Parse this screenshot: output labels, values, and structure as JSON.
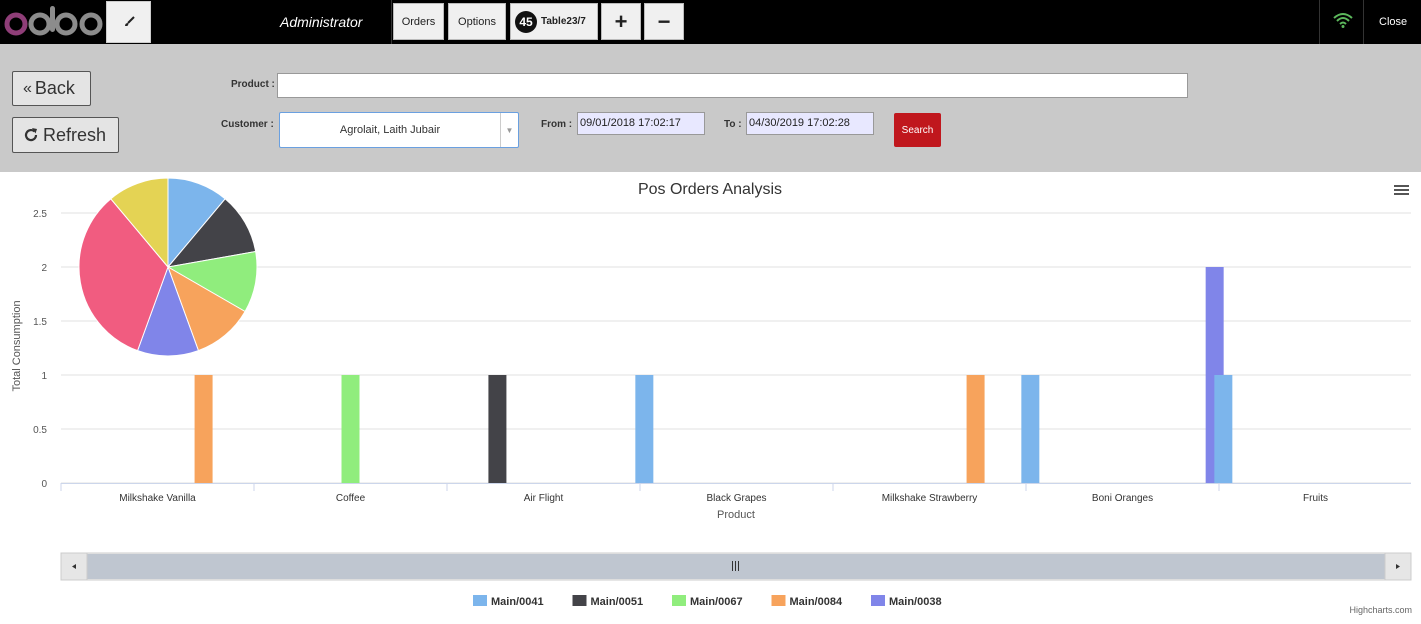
{
  "topbar": {
    "logo_text": "odoo",
    "user_name": "Administrator",
    "orders_label": "Orders",
    "options_label": "Options",
    "order_number": "45",
    "order_name": "Table23/7",
    "plus_label": "+",
    "minus_label": "−",
    "close_label": "Close"
  },
  "filters": {
    "back_label": "Back",
    "refresh_label": "Refresh",
    "product_label": "Product :",
    "product_value": "",
    "customer_label": "Customer :",
    "customer_value": "Agrolait, Laith Jubair",
    "from_label": "From :",
    "from_value": "09/01/2018 17:02:17",
    "to_label": "To :",
    "to_value": "04/30/2019 17:02:28",
    "search_label": "Search"
  },
  "colors": {
    "Main/0041": "#7cb5ec",
    "Main/0051": "#434348",
    "Main/0067": "#90ed7d",
    "Main/0084": "#f7a35c",
    "Main/0038": "#8085e9",
    "pie_red": "#f15c80",
    "pie_yellow": "#e4d354",
    "accent_red": "#c0171d"
  },
  "credit": "Highcharts.com",
  "chart_data": {
    "type": "bar",
    "title": "Pos Orders Analysis",
    "xlabel": "Product",
    "ylabel": "Total Consumption",
    "ylim": [
      0,
      2.5
    ],
    "yticks": [
      "0",
      "0.5",
      "1",
      "1.5",
      "2",
      "2.5"
    ],
    "grid": true,
    "legend_position": "bottom",
    "categories": [
      "Milkshake Vanilla",
      "Coffee",
      "Air Flight",
      "Black Grapes",
      "Milkshake Strawberry",
      "Boni Oranges",
      "Fruits"
    ],
    "series": [
      {
        "name": "Main/0041",
        "values": [
          0,
          0,
          0,
          1,
          0,
          1,
          1
        ]
      },
      {
        "name": "Main/0051",
        "values": [
          0,
          0,
          1,
          0,
          0,
          0,
          0
        ]
      },
      {
        "name": "Main/0067",
        "values": [
          0,
          1,
          0,
          0,
          0,
          0,
          0
        ]
      },
      {
        "name": "Main/0084",
        "values": [
          1,
          0,
          0,
          0,
          1,
          0,
          0
        ]
      },
      {
        "name": "Main/0038",
        "values": [
          0,
          0,
          0,
          0,
          0,
          2,
          0
        ]
      }
    ],
    "pie": {
      "type": "pie",
      "slices": [
        {
          "value": 1,
          "color": "#7cb5ec"
        },
        {
          "value": 1,
          "color": "#434348"
        },
        {
          "value": 1,
          "color": "#90ed7d"
        },
        {
          "value": 1,
          "color": "#f7a35c"
        },
        {
          "value": 1,
          "color": "#8085e9"
        },
        {
          "value": 3,
          "color": "#f15c80"
        },
        {
          "value": 1,
          "color": "#e4d354"
        }
      ]
    }
  }
}
